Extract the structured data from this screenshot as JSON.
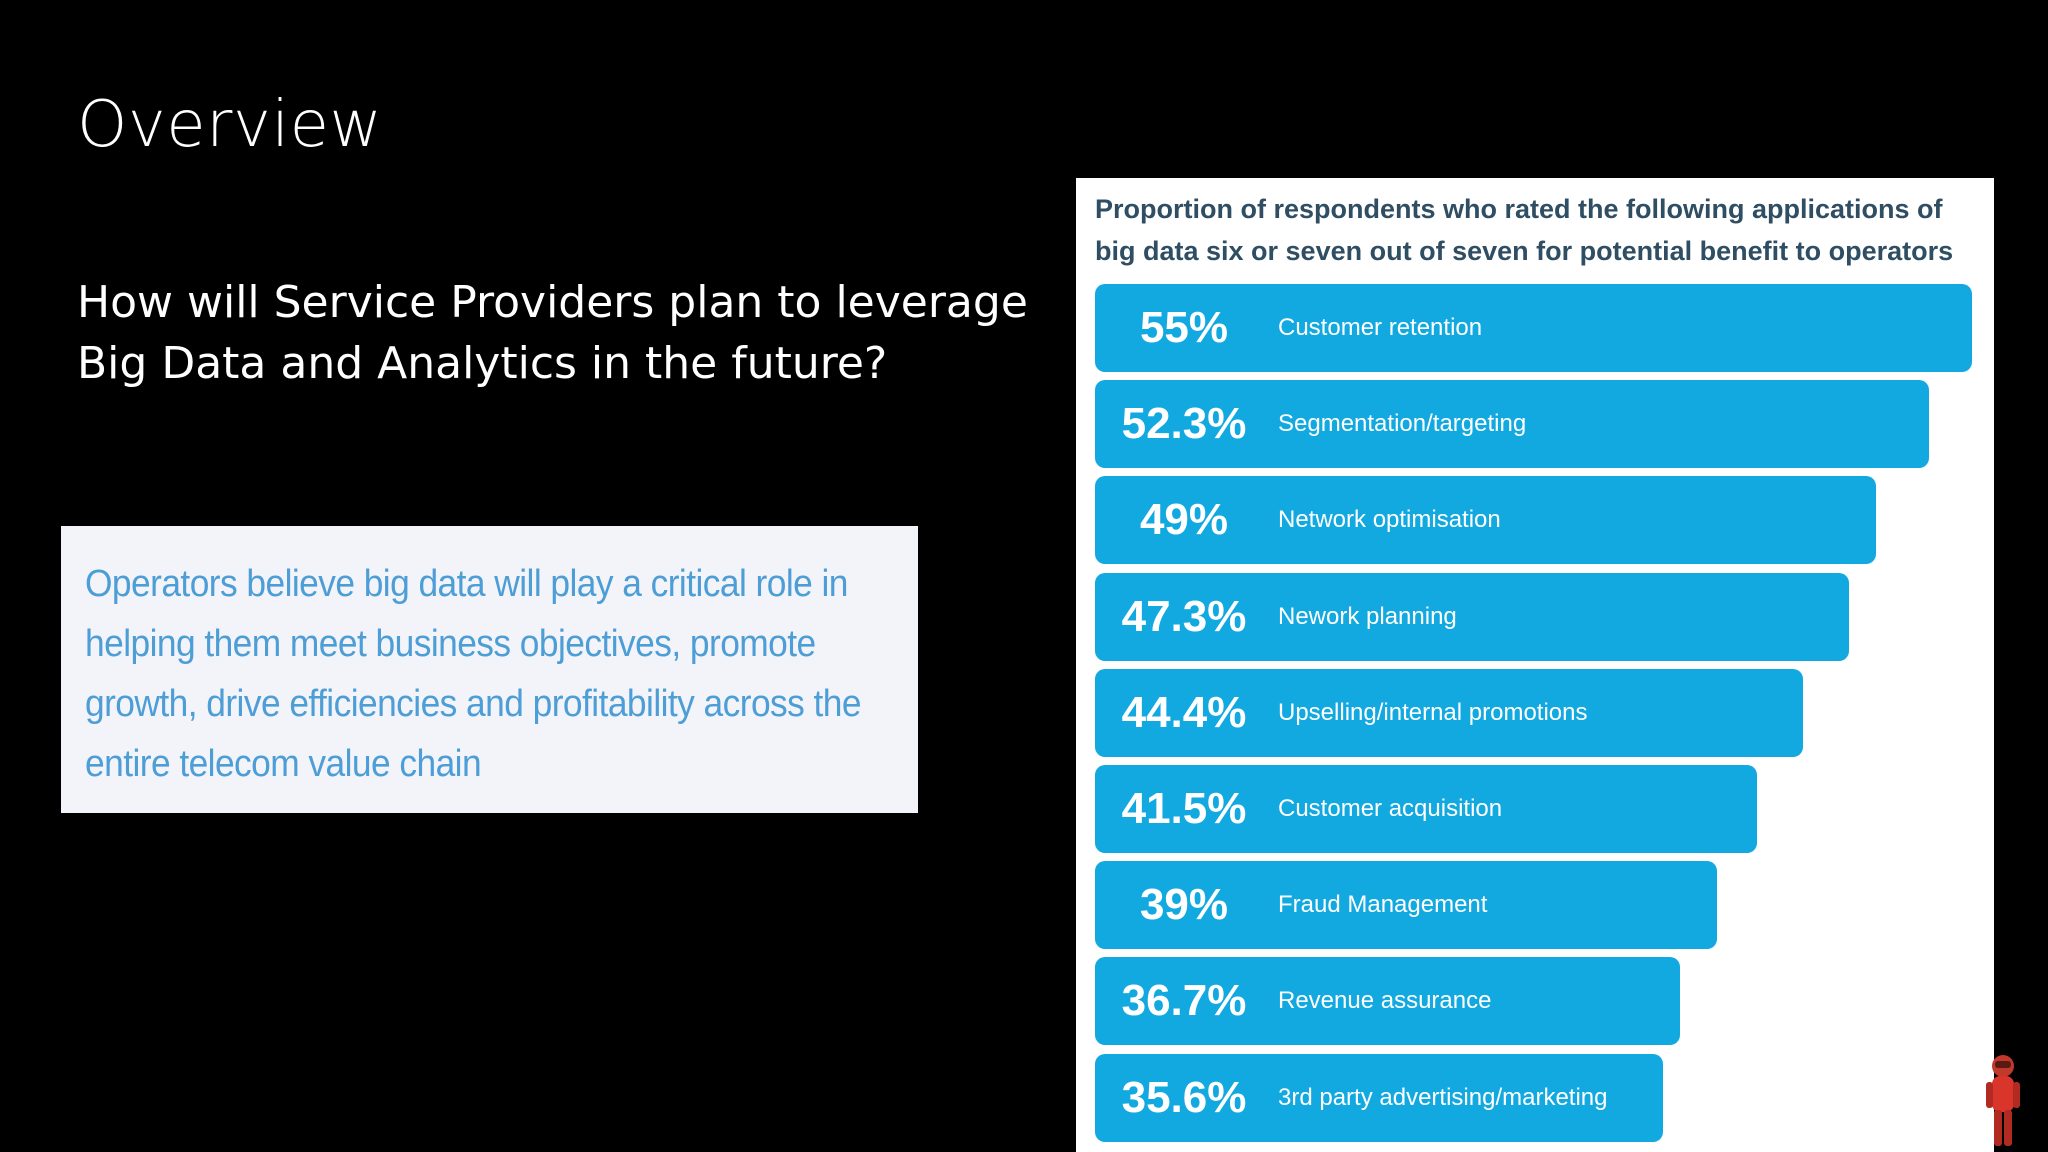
{
  "slide": {
    "title": "Overview",
    "question": "How will Service Providers plan to leverage Big Data and Analytics in the future?",
    "quote": "Operators believe big data will play a critical role in helping them meet business objectives, promote growth, drive efficiencies and profitability across the entire telecom value chain"
  },
  "colors": {
    "background": "#000000",
    "bar": "#12a9e1",
    "quote_text": "#4d9ed6",
    "chart_title": "#2f4e63"
  },
  "chart_data": {
    "type": "bar",
    "orientation": "horizontal",
    "title": "Proportion of respondents who rated the following applications of big data six or seven out of seven for potential benefit to operators",
    "xlabel": "",
    "ylabel": "",
    "xlim": [
      0,
      55
    ],
    "grid": false,
    "legend": "none",
    "categories": [
      "Customer retention",
      "Segmentation/targeting",
      "Network optimisation",
      "Nework planning",
      "Upselling/internal promotions",
      "Customer acquisition",
      "Fraud Management",
      "Revenue assurance",
      "3rd party advertising/marketing"
    ],
    "values": [
      55,
      52.3,
      49,
      47.3,
      44.4,
      41.5,
      39,
      36.7,
      35.6
    ],
    "value_labels": [
      "55%",
      "52.3%",
      "49%",
      "47.3%",
      "44.4%",
      "41.5%",
      "39%",
      "36.7%",
      "35.6%"
    ]
  }
}
